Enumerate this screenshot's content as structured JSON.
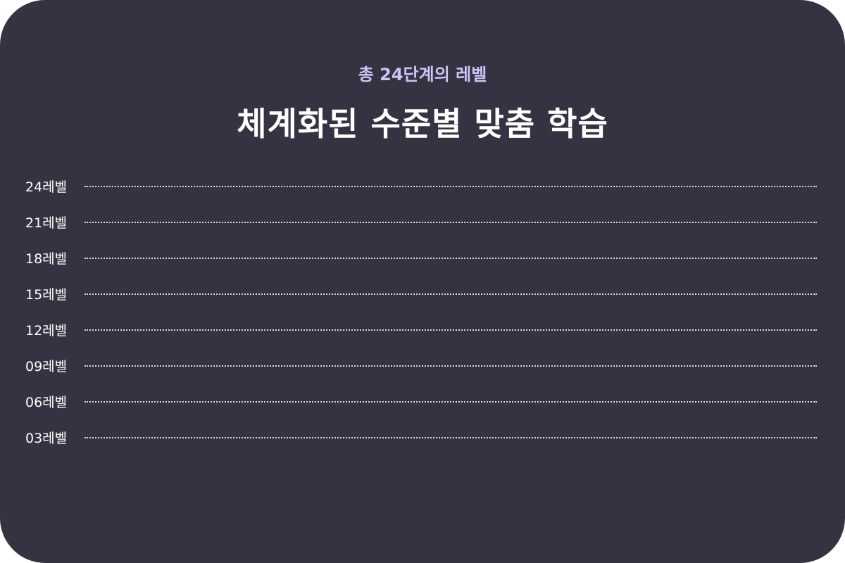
{
  "header": {
    "subtitle": "총 24단계의 레벨",
    "title": "체계화된 수준별 맞춤 학습"
  },
  "levels": [
    {
      "label": "24레벨"
    },
    {
      "label": "21레벨"
    },
    {
      "label": "18레벨"
    },
    {
      "label": "15레벨"
    },
    {
      "label": "12레벨"
    },
    {
      "label": "09레벨"
    },
    {
      "label": "06레벨"
    },
    {
      "label": "03레벨"
    }
  ],
  "colors": {
    "background": "#353341",
    "accent": "#cbc4f6",
    "text": "#ffffff"
  }
}
